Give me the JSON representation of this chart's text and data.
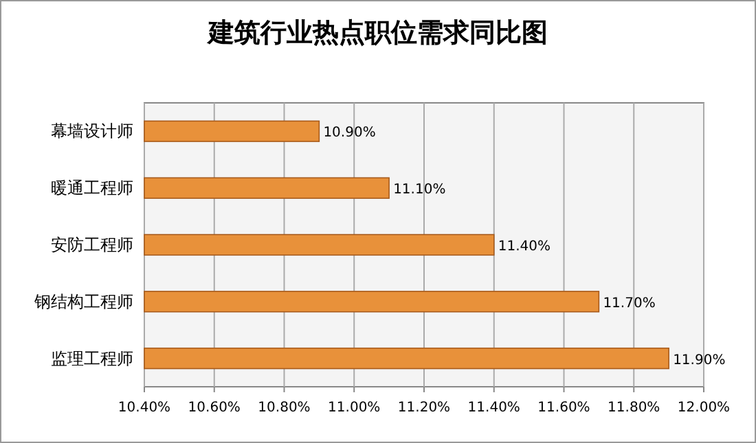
{
  "chart_data": {
    "type": "bar",
    "orientation": "horizontal",
    "title": "建筑行业热点职位需求同比图",
    "categories": [
      "幕墙设计师",
      "暖通工程师",
      "安防工程师",
      "钢结构工程师",
      "监理工程师"
    ],
    "values": [
      10.9,
      11.1,
      11.4,
      11.7,
      11.9
    ],
    "value_labels": [
      "10.90%",
      "11.10%",
      "11.40%",
      "11.70%",
      "11.90%"
    ],
    "color": "#e8913a",
    "xlim": [
      10.4,
      12.0
    ],
    "xticks": [
      {
        "value": 10.4,
        "label": "10.40%"
      },
      {
        "value": 10.6,
        "label": "10.60%"
      },
      {
        "value": 10.8,
        "label": "10.80%"
      },
      {
        "value": 11.0,
        "label": "11.00%"
      },
      {
        "value": 11.2,
        "label": "11.20%"
      },
      {
        "value": 11.4,
        "label": "11.40%"
      },
      {
        "value": 11.6,
        "label": "11.60%"
      },
      {
        "value": 11.8,
        "label": "11.80%"
      },
      {
        "value": 12.0,
        "label": "12.00%"
      }
    ],
    "grid": "x"
  }
}
